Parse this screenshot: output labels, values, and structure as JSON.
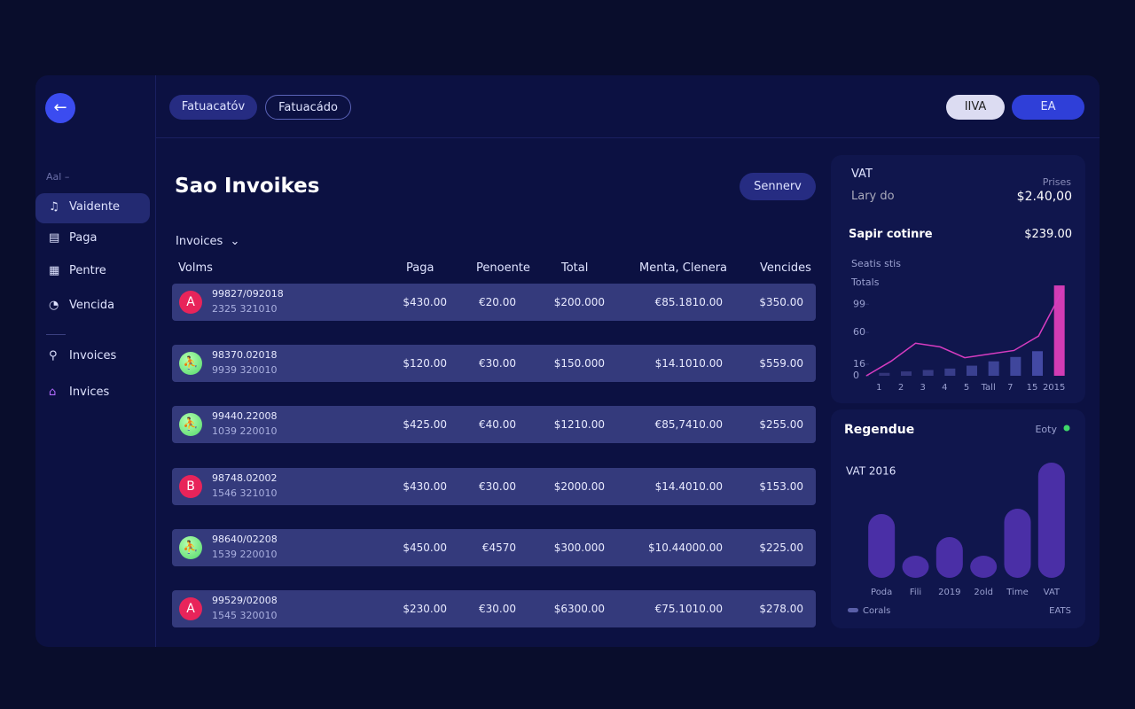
{
  "nav": {
    "tabs": [
      "Fatuacatóv",
      "Fatuacádo"
    ],
    "actions": [
      "IIVA",
      "EA"
    ]
  },
  "sidebar": {
    "section": "Aal –",
    "items": [
      "Vaidente",
      "Paga",
      "Pentre",
      "Vencida",
      "Invoices",
      "Invices"
    ]
  },
  "main": {
    "title": "Sao Invoikes",
    "button": "Sennerv",
    "filter": "Invoices",
    "headers": [
      "Volms",
      "Paga",
      "Penoente",
      "Total",
      "Menta, Clenera",
      "Vencides"
    ],
    "rows": [
      {
        "avatar": "A",
        "avatar_color": "#e8245a",
        "id": "99827/092018",
        "ref": "2325 321010",
        "cells": [
          "$430.00",
          "€20.00",
          "$200.000",
          "€85.1810.00",
          "$350.00"
        ]
      },
      {
        "avatar_color": "#4fd86a",
        "id": "98370.02018",
        "ref": "9939 320010",
        "cells": [
          "$120.00",
          "€30.00",
          "$150.000",
          "$14.1010.00",
          "$559.00"
        ]
      },
      {
        "avatar_color": "#4fd86a",
        "id": "99440.22008",
        "ref": "1039 220010",
        "cells": [
          "$425.00",
          "€40.00",
          "$1210.00",
          "€85,7410.00",
          "$255.00"
        ]
      },
      {
        "avatar": "B",
        "avatar_color": "#e8245a",
        "id": "98748.02002",
        "ref": "1546 321010",
        "cells": [
          "$430.00",
          "€30.00",
          "$2000.00",
          "$14.4010.00",
          "$153.00"
        ]
      },
      {
        "avatar_color": "#4fd86a",
        "id": "98640/02208",
        "ref": "1539 220010",
        "cells": [
          "$450.00",
          "€4570",
          "$300.000",
          "$10.44000.00",
          "$225.00"
        ]
      },
      {
        "avatar": "A",
        "avatar_color": "#e8245a",
        "id": "99529/02008",
        "ref": "1545 320010",
        "cells": [
          "$230.00",
          "€30.00",
          "$6300.00",
          "€75.1010.00",
          "$278.00"
        ]
      }
    ]
  },
  "vat_card": {
    "label": "VAT",
    "sublabel": "Lary do",
    "note": "Prises",
    "amount": "$2.40,00",
    "line_label": "Sapir cotinre",
    "line_amount": "$239.00"
  },
  "chart_data": [
    {
      "type": "bar-line",
      "title": "Seatis stis",
      "ylabel": "Totals",
      "categories": [
        "1",
        "2",
        "3",
        "4",
        "5",
        "Tall",
        "7",
        "15",
        "2015"
      ],
      "ylim": [
        0,
        130
      ],
      "yticks": [
        0,
        16,
        60,
        99
      ],
      "series": [
        {
          "type": "bar",
          "colors": [
            "#33357a",
            "#34377e",
            "#363a84",
            "#383d8a",
            "#3a4090",
            "#3c4396",
            "#3f469c",
            "#4349a4",
            "#d23cb4"
          ],
          "values": [
            4,
            6,
            8,
            10,
            14,
            20,
            26,
            34,
            125
          ]
        },
        {
          "type": "line",
          "color": "#d63cc0",
          "values": [
            0,
            20,
            45,
            40,
            25,
            30,
            35,
            55,
            120
          ]
        }
      ]
    },
    {
      "type": "bar",
      "title": "Regendue",
      "badge": "Eoty",
      "subtitle": "VAT 2016",
      "categories": [
        "Poda",
        "Fili",
        "2019",
        "2old",
        "Time",
        "VAT"
      ],
      "values": [
        72,
        25,
        46,
        25,
        78,
        130
      ],
      "ylim": [
        0,
        140
      ],
      "color": "#4a2fa6",
      "legend": "Corals",
      "footnote": "EATS"
    }
  ]
}
